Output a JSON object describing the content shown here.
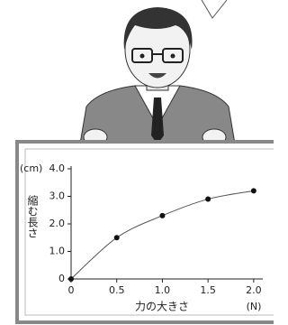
{
  "chart_data": {
    "type": "scatter",
    "y_unit": "(cm)",
    "y_label": "縮む長さ",
    "x_label": "力の大きさ",
    "x_unit": "(N)",
    "x": [
      0,
      0.5,
      1,
      1.5,
      2
    ],
    "values": [
      0,
      1.5,
      2.3,
      2.9,
      3.2
    ],
    "color": "#111111",
    "xlim": [
      0,
      2.1
    ],
    "ylim": [
      0,
      4
    ],
    "xticks": [
      0,
      0.5,
      {
        "value": 1,
        "label": "1.0"
      },
      1.5,
      {
        "value": 2,
        "label": "2.0"
      }
    ],
    "yticks": [
      0,
      {
        "value": 1,
        "label": "1.0"
      },
      {
        "value": 2,
        "label": "2.0"
      },
      {
        "value": 3,
        "label": "3.0"
      },
      {
        "value": 4,
        "label": "4.0"
      }
    ]
  }
}
